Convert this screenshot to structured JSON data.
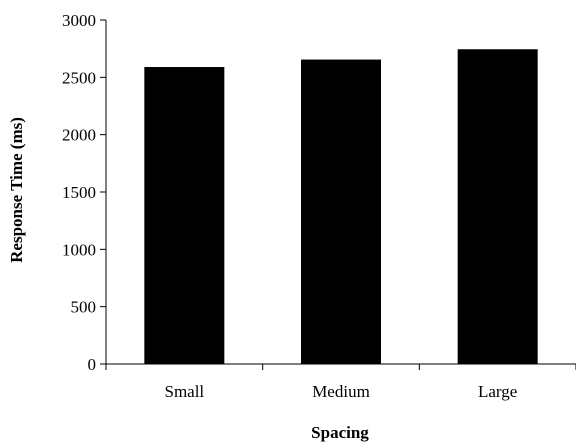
{
  "chart_data": {
    "type": "bar",
    "categories": [
      "Small",
      "Medium",
      "Large"
    ],
    "values": [
      2590,
      2655,
      2745
    ],
    "xlabel": "Spacing",
    "ylabel": "Response Time (ms)",
    "ylim": [
      0,
      3000
    ],
    "yticks": [
      0,
      500,
      1000,
      1500,
      2000,
      2500,
      3000
    ],
    "grid": false,
    "bar_color": "#000000"
  }
}
